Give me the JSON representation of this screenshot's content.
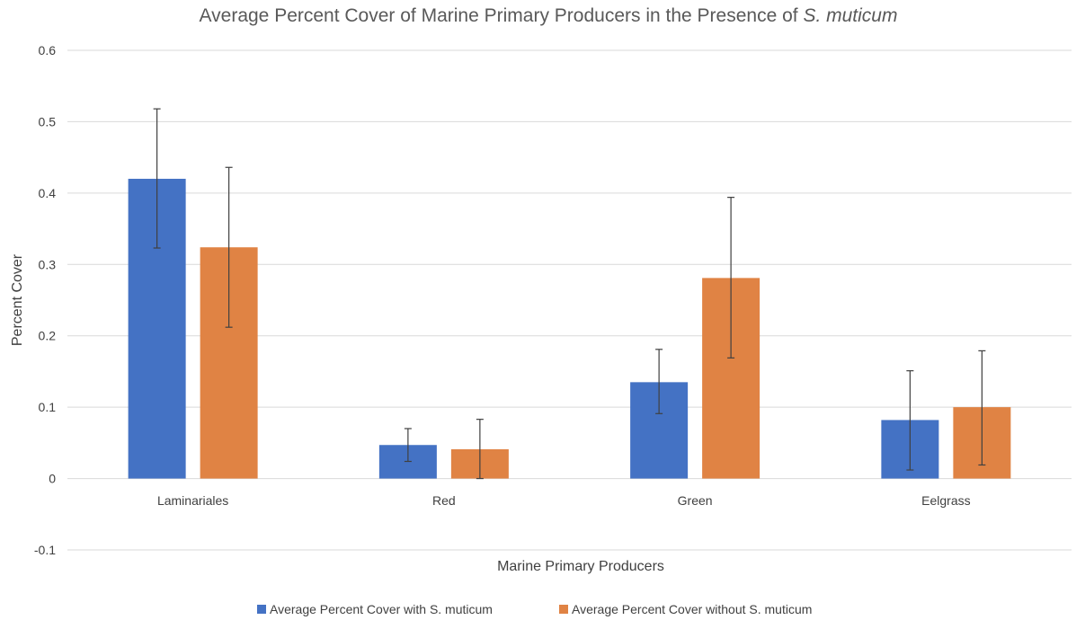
{
  "chart_data": {
    "type": "bar",
    "title_main": "Average Percent Cover of Marine Primary Producers in the Presence of",
    "title_italic": "S. muticum",
    "xlabel": "Marine Primary Producers",
    "ylabel": "Percent Cover",
    "categories": [
      "Laminariales",
      "Red",
      "Green",
      "Eelgrass"
    ],
    "ylim": [
      -0.1,
      0.6
    ],
    "yticks": [
      -0.1,
      0,
      0.1,
      0.2,
      0.3,
      0.4,
      0.5,
      0.6
    ],
    "ytick_labels": [
      "-0.1",
      "0",
      "0.1",
      "0.2",
      "0.3",
      "0.4",
      "0.5",
      "0.6"
    ],
    "grid": true,
    "legend_position": "bottom",
    "series": [
      {
        "name": "Average Percent Cover with S. muticum",
        "color": "#4472c4",
        "values": [
          0.42,
          0.047,
          0.135,
          0.082
        ],
        "error_low": [
          0.323,
          0.024,
          0.091,
          0.012
        ],
        "error_high": [
          0.518,
          0.07,
          0.181,
          0.151
        ]
      },
      {
        "name": "Average Percent Cover without S. muticum",
        "color": "#e08344",
        "values": [
          0.324,
          0.041,
          0.281,
          0.1
        ],
        "error_low": [
          0.212,
          0.0,
          0.169,
          0.019
        ],
        "error_high": [
          0.436,
          0.083,
          0.394,
          0.179
        ]
      }
    ]
  }
}
